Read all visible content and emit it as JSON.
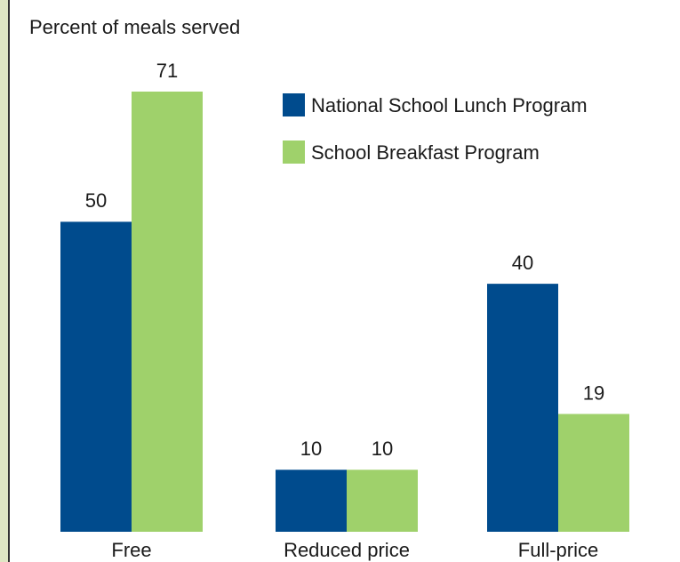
{
  "chart_data": {
    "type": "bar",
    "y_label": "Percent of meals served",
    "categories": [
      "Free",
      "Reduced price",
      "Full-price"
    ],
    "series": [
      {
        "name": "National School Lunch Program",
        "color": "#004b8d",
        "values": [
          50,
          10,
          40
        ]
      },
      {
        "name": "School Breakfast Program",
        "color": "#9fd16b",
        "values": [
          71,
          10,
          19
        ]
      }
    ],
    "legend": "top-right"
  }
}
